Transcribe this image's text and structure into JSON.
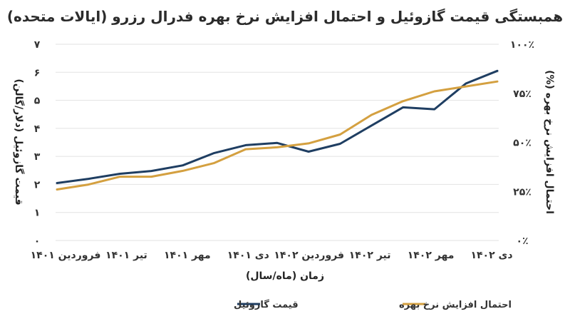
{
  "chart_data": {
    "type": "line",
    "title": "همبستگی قیمت گازوئیل و احتمال افزایش نرخ بهره فدرال رزرو (ایالات متحده)",
    "xlabel": "زمان (ماه/سال)",
    "ylabel_left": "قیمت گازوئیل (دلار/گالن)",
    "ylabel_right": "احتمال افزایش نرخ بهره (%)",
    "x_tick_labels": [
      "فروردین ۱۴۰۱",
      "تیر ۱۴۰۱",
      "مهر ۱۴۰۱",
      "دی ۱۴۰۱",
      "فروردین ۱۴۰۲",
      "تیر ۱۴۰۲",
      "مهر ۱۴۰۲",
      "دی ۱۴۰۲"
    ],
    "y_left_ticks": [
      "۰",
      "۱",
      "۲",
      "۳",
      "۴",
      "۵",
      "۶",
      "۷"
    ],
    "y_right_ticks": [
      "۰٪",
      "۲۵٪",
      "۵۰٪",
      "۷۵٪",
      "۱۰۰٪"
    ],
    "ylim_left": [
      0,
      7
    ],
    "ylim_right": [
      0,
      100
    ],
    "grid": "horizontal",
    "legend_position": "bottom",
    "series": [
      {
        "name": "قیمت گازوئیل",
        "axis": "left",
        "color": "#1f3e62",
        "values": [
          2.05,
          2.2,
          2.38,
          2.48,
          2.68,
          3.12,
          3.4,
          3.48,
          3.17,
          3.45,
          4.1,
          4.75,
          4.68,
          5.6,
          6.05
        ]
      },
      {
        "name": "احتمال افزایش نرخ بهره",
        "axis": "right",
        "color": "#d4a040",
        "values": [
          26,
          28.5,
          32.5,
          32.5,
          35.5,
          39.5,
          46.5,
          47.5,
          49.5,
          54,
          64,
          71,
          76,
          78.5,
          81
        ]
      }
    ]
  }
}
